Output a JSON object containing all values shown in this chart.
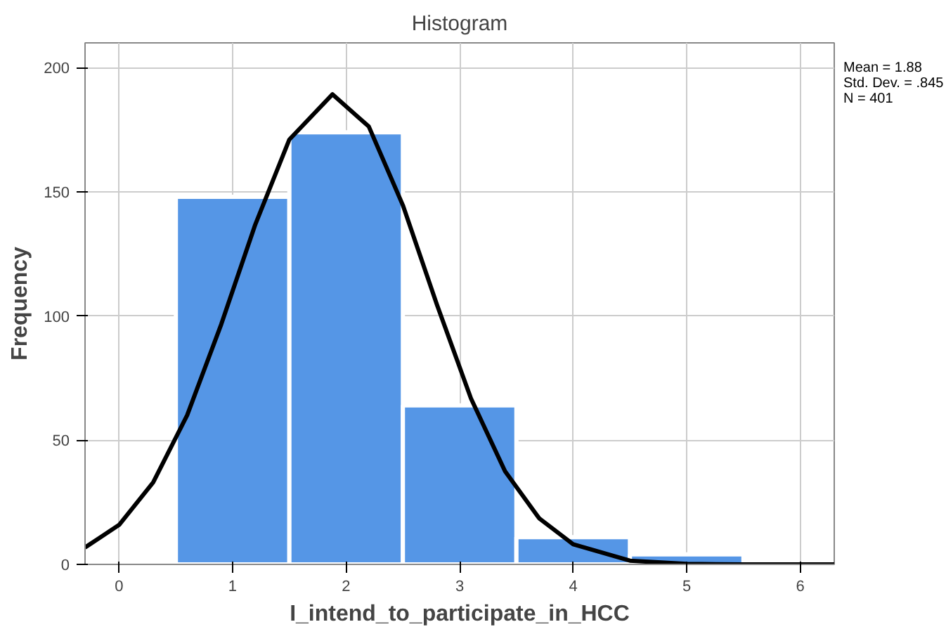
{
  "chart_data": {
    "type": "histogram",
    "title": "Histogram",
    "xlabel": "I_intend_to_participate_in_HCC",
    "ylabel": "Frequency",
    "bins": [
      0.5,
      1.5,
      2.5,
      3.5,
      4.5,
      5.5
    ],
    "values": [
      148,
      174,
      64,
      11,
      4
    ],
    "color": "#5596e6",
    "series": [
      {
        "type": "line",
        "color": "#000000",
        "x": [
          -0.3,
          0,
          0.3,
          0.6,
          0.9,
          1.2,
          1.5,
          1.88,
          2.2,
          2.5,
          2.8,
          3.1,
          3.4,
          3.7,
          4.0,
          4.5,
          5.0,
          5.5,
          6.3
        ],
        "values": [
          6.8,
          15.9,
          33.0,
          60.1,
          96.7,
          136.9,
          171.1,
          189.3,
          176.3,
          144.6,
          104.6,
          66.8,
          37.5,
          18.6,
          8.1,
          1.5,
          0.2,
          0,
          0
        ]
      }
    ],
    "xlim": [
      -0.3,
      6.3
    ],
    "ylim": [
      0,
      210
    ],
    "xticks": [
      0,
      1,
      2,
      3,
      4,
      5,
      6
    ],
    "yticks": [
      0,
      50,
      100,
      150,
      200
    ],
    "grid": true,
    "annotations": [
      "Mean = 1.88",
      "Std. Dev. = .845",
      "N = 401"
    ]
  }
}
